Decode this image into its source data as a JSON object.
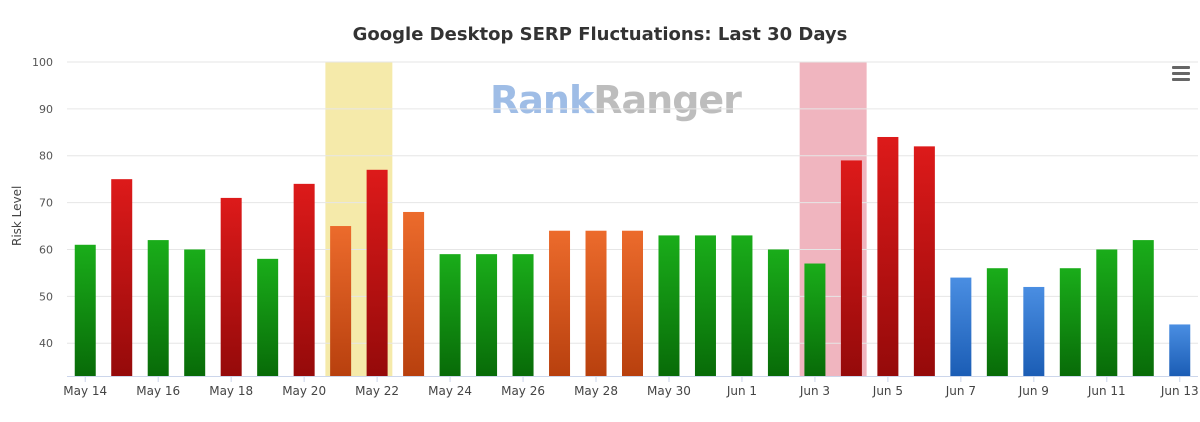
{
  "chart_data": {
    "type": "bar",
    "title": "Google Desktop SERP Fluctuations: Last 30 Days",
    "ylabel": "Risk Level",
    "xlabel": "",
    "ylim": [
      33,
      100
    ],
    "yticks": [
      40,
      50,
      60,
      70,
      80,
      90,
      100
    ],
    "grid": true,
    "categories": [
      "May 14",
      "May 15",
      "May 16",
      "May 17",
      "May 18",
      "May 19",
      "May 20",
      "May 21",
      "May 22",
      "May 23",
      "May 24",
      "May 25",
      "May 26",
      "May 27",
      "May 28",
      "May 29",
      "May 30",
      "May 31",
      "Jun 1",
      "Jun 2",
      "Jun 3",
      "Jun 4",
      "Jun 5",
      "Jun 6",
      "Jun 7",
      "Jun 8",
      "Jun 9",
      "Jun 10",
      "Jun 11",
      "Jun 12",
      "Jun 13"
    ],
    "x_tick_labels": [
      "May 14",
      "May 16",
      "May 18",
      "May 20",
      "May 22",
      "May 24",
      "May 26",
      "May 28",
      "May 30",
      "Jun 1",
      "Jun 3",
      "Jun 5",
      "Jun 7",
      "Jun 9",
      "Jun 11",
      "Jun 13"
    ],
    "values": [
      61,
      75,
      62,
      60,
      71,
      58,
      74,
      65,
      77,
      68,
      59,
      59,
      59,
      64,
      64,
      64,
      63,
      63,
      63,
      60,
      57,
      79,
      84,
      82,
      54,
      56,
      52,
      56,
      60,
      62,
      44
    ],
    "bar_colors": [
      "green",
      "red",
      "green",
      "green",
      "red",
      "green",
      "red",
      "orange",
      "red",
      "orange",
      "green",
      "green",
      "green",
      "orange",
      "orange",
      "orange",
      "green",
      "green",
      "green",
      "green",
      "green",
      "red",
      "red",
      "red",
      "blue",
      "green",
      "blue",
      "green",
      "green",
      "green",
      "blue"
    ],
    "highlight_bands": [
      {
        "from": "May 21",
        "to": "May 22",
        "color": "#f5eaaa"
      },
      {
        "from": "Jun 3",
        "to": "Jun 4",
        "color": "#f0b5bf"
      }
    ],
    "palette": {
      "green": [
        "#1aad1a",
        "#086b08"
      ],
      "red": [
        "#dd1a1a",
        "#950a0a"
      ],
      "orange": [
        "#ec6b2c",
        "#b8400e"
      ],
      "blue": [
        "#4a8ee2",
        "#1b5db5"
      ]
    }
  },
  "watermark": {
    "part1": "Rank",
    "part2": "Ranger"
  }
}
